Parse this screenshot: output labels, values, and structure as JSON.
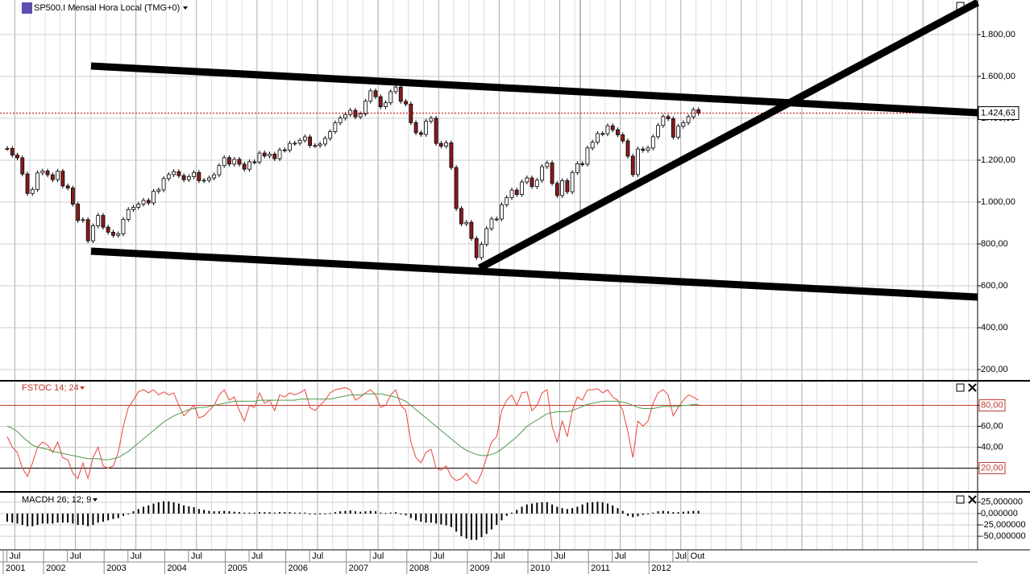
{
  "chart_data": [
    {
      "type": "candlestick",
      "title": "SP500.I Mensal Hora Local (TMG+0)",
      "values": [
        1256,
        1224,
        1211,
        1134,
        1041,
        1060,
        1139,
        1148,
        1130,
        1107,
        1147,
        1077,
        1067,
        990,
        912,
        916,
        815,
        886,
        936,
        880,
        856,
        841,
        848,
        917,
        964,
        975,
        990,
        1008,
        996,
        1051,
        1058,
        1112,
        1131,
        1145,
        1126,
        1107,
        1121,
        1141,
        1102,
        1104,
        1115,
        1130,
        1174,
        1212,
        1181,
        1204,
        1181,
        1157,
        1192,
        1191,
        1234,
        1220,
        1229,
        1207,
        1249,
        1248,
        1280,
        1281,
        1295,
        1311,
        1270,
        1270,
        1277,
        1304,
        1336,
        1378,
        1401,
        1418,
        1438,
        1407,
        1421,
        1482,
        1531,
        1503,
        1455,
        1474,
        1527,
        1549,
        1481,
        1468,
        1379,
        1331,
        1323,
        1386,
        1400,
        1280,
        1267,
        1283,
        1165,
        969,
        896,
        903,
        826,
        735,
        798,
        873,
        919,
        919,
        987,
        1021,
        1057,
        1036,
        1096,
        1115,
        1074,
        1104,
        1169,
        1187,
        1089,
        1031,
        1102,
        1049,
        1141,
        1183,
        1181,
        1258,
        1286,
        1327,
        1326,
        1364,
        1345,
        1321,
        1292,
        1219,
        1131,
        1253,
        1247,
        1258,
        1312,
        1366,
        1408,
        1398,
        1310,
        1362,
        1379,
        1407,
        1441,
        1424.63
      ],
      "up_color": "#ffffff",
      "down_color": "#8b1a1a",
      "ylim": [
        150,
        1965
      ],
      "yticks": [
        {
          "value": 200,
          "label": "200,00"
        },
        {
          "value": 400,
          "label": "400,00"
        },
        {
          "value": 600,
          "label": "600,00"
        },
        {
          "value": 800,
          "label": "800,00"
        },
        {
          "value": 1000,
          "label": "1.000,00"
        },
        {
          "value": 1200,
          "label": "1.200,00"
        },
        {
          "value": 1400,
          "label": "1.400,00"
        },
        {
          "value": 1600,
          "label": "1.600,00"
        },
        {
          "value": 1800,
          "label": "1.800,00"
        }
      ],
      "current_price": {
        "value": 1424.63,
        "label": "1.424,63"
      },
      "grid": true
    },
    {
      "type": "line",
      "title": "FSTOC 14; 24",
      "series": [
        {
          "color": "#e8463c",
          "values": [
            50,
            40,
            35,
            20,
            12,
            25,
            40,
            45,
            42,
            35,
            45,
            30,
            28,
            15,
            10,
            25,
            10,
            30,
            40,
            22,
            20,
            22,
            35,
            60,
            78,
            85,
            93,
            95,
            92,
            95,
            90,
            93,
            90,
            92,
            80,
            70,
            75,
            80,
            68,
            70,
            75,
            80,
            90,
            95,
            85,
            88,
            75,
            65,
            80,
            78,
            92,
            82,
            85,
            75,
            90,
            88,
            92,
            90,
            92,
            95,
            78,
            75,
            80,
            85,
            92,
            95,
            96,
            97,
            95,
            85,
            88,
            92,
            95,
            90,
            78,
            80,
            90,
            95,
            80,
            75,
            45,
            30,
            25,
            35,
            38,
            20,
            18,
            22,
            12,
            8,
            10,
            15,
            8,
            5,
            15,
            30,
            45,
            50,
            75,
            85,
            90,
            80,
            92,
            93,
            75,
            80,
            92,
            95,
            60,
            45,
            65,
            50,
            75,
            88,
            85,
            95,
            95,
            96,
            92,
            95,
            88,
            85,
            75,
            55,
            30,
            65,
            60,
            65,
            82,
            92,
            95,
            90,
            70,
            78,
            85,
            90,
            88,
            85
          ]
        },
        {
          "color": "#4f9a4f",
          "values": [
            60,
            58,
            55,
            50,
            46,
            42,
            40,
            39,
            38,
            36,
            35,
            34,
            33,
            32,
            31,
            30,
            29,
            29,
            29,
            28,
            28,
            29,
            30,
            33,
            36,
            40,
            44,
            48,
            52,
            56,
            60,
            64,
            67,
            70,
            72,
            74,
            76,
            77,
            78,
            78,
            79,
            80,
            81,
            82,
            83,
            84,
            84,
            84,
            84,
            84,
            85,
            85,
            85,
            85,
            85,
            85,
            85,
            85,
            86,
            86,
            86,
            86,
            86,
            86,
            86,
            87,
            88,
            89,
            90,
            90,
            90,
            91,
            91,
            91,
            91,
            90,
            89,
            88,
            86,
            84,
            80,
            76,
            72,
            68,
            64,
            60,
            56,
            52,
            48,
            44,
            40,
            37,
            35,
            33,
            32,
            32,
            33,
            35,
            38,
            42,
            46,
            50,
            55,
            60,
            63,
            66,
            69,
            72,
            73,
            74,
            74,
            74,
            75,
            77,
            79,
            81,
            82,
            83,
            84,
            84,
            84,
            84,
            83,
            82,
            80,
            78,
            77,
            77,
            77,
            78,
            79,
            79,
            79,
            79,
            80,
            80,
            81,
            81
          ]
        }
      ],
      "ylim": [
        -2,
        102
      ],
      "yticks": [
        {
          "value": 20,
          "label": "20,00"
        },
        {
          "value": 40,
          "label": "40,00"
        },
        {
          "value": 60,
          "label": "60,00"
        },
        {
          "value": 80,
          "label": "80,00"
        }
      ]
    },
    {
      "type": "bar",
      "title": "MACDH 26; 12; 9",
      "color": "#000000",
      "values": [
        -18,
        -20,
        -22,
        -25,
        -28,
        -28,
        -25,
        -22,
        -22,
        -22,
        -20,
        -20,
        -20,
        -22,
        -25,
        -25,
        -28,
        -25,
        -20,
        -18,
        -15,
        -12,
        -10,
        -5,
        0,
        5,
        10,
        15,
        18,
        22,
        25,
        27,
        27,
        25,
        22,
        18,
        16,
        14,
        10,
        8,
        6,
        5,
        5,
        6,
        5,
        4,
        3,
        2,
        2,
        2,
        3,
        3,
        3,
        2,
        3,
        3,
        3,
        2,
        2,
        2,
        0,
        -2,
        -2,
        -1,
        1,
        3,
        5,
        6,
        7,
        5,
        4,
        5,
        6,
        5,
        2,
        1,
        2,
        3,
        -1,
        -4,
        -10,
        -15,
        -18,
        -20,
        -20,
        -22,
        -24,
        -26,
        -30,
        -40,
        -50,
        -55,
        -58,
        -58,
        -52,
        -45,
        -35,
        -25,
        -15,
        -5,
        2,
        8,
        15,
        20,
        22,
        24,
        25,
        25,
        20,
        15,
        12,
        10,
        12,
        15,
        20,
        24,
        25,
        26,
        25,
        22,
        18,
        12,
        6,
        -5,
        -8,
        -6,
        -3,
        0,
        2,
        5,
        6,
        5,
        3,
        3,
        4,
        5,
        6,
        6
      ],
      "ylim": [
        -80,
        46
      ],
      "yticks": [
        {
          "value": 25,
          "label": "25,000000"
        },
        {
          "value": 0,
          "label": "0,000000"
        },
        {
          "value": -25,
          "label": "-25,000000"
        },
        {
          "value": -50,
          "label": "-50,000000"
        }
      ],
      "categories": [
        null,
        null,
        "Jul",
        null,
        null,
        null,
        null,
        null,
        null,
        null,
        null,
        null,
        null,
        null,
        "Jul",
        null,
        null,
        null,
        null,
        null,
        null,
        null,
        null,
        null,
        null,
        null,
        "Jul",
        null,
        null,
        null,
        null,
        null,
        null,
        null,
        null,
        null,
        null,
        null,
        "Jul",
        null,
        null,
        null,
        null,
        null,
        null,
        null,
        null,
        null,
        null,
        null,
        "Jul",
        null,
        null,
        null,
        null,
        null,
        null,
        null,
        null,
        null,
        null,
        null,
        "Jul",
        null,
        null,
        null,
        null,
        null,
        null,
        null,
        null,
        null,
        null,
        null,
        "Jul",
        null,
        null,
        null,
        null,
        null,
        null,
        null,
        null,
        null,
        null,
        null,
        "Jul",
        null,
        null,
        null,
        null,
        null,
        null,
        null,
        null,
        null,
        null,
        null,
        "Jul",
        null,
        null,
        null,
        null,
        null,
        null,
        null,
        null,
        null,
        null,
        null,
        "Jul",
        null,
        null,
        null,
        null,
        null,
        null,
        null,
        null,
        null,
        null,
        null,
        "Jul",
        null,
        null,
        null,
        null,
        null,
        null,
        null,
        null,
        null,
        null,
        null,
        "Jul",
        null,
        null,
        "Out"
      ],
      "year_labels": [
        "2001",
        null,
        null,
        null,
        null,
        null,
        null,
        null,
        "2002",
        null,
        null,
        null,
        null,
        null,
        null,
        null,
        null,
        null,
        null,
        null,
        "2003",
        null,
        null,
        null,
        null,
        null,
        null,
        null,
        null,
        null,
        null,
        null,
        "2004",
        null,
        null,
        null,
        null,
        null,
        null,
        null,
        null,
        null,
        null,
        null,
        "2005",
        null,
        null,
        null,
        null,
        null,
        null,
        null,
        null,
        null,
        null,
        null,
        "2006",
        null,
        null,
        null,
        null,
        null,
        null,
        null,
        null,
        null,
        null,
        null,
        "2007",
        null,
        null,
        null,
        null,
        null,
        null,
        null,
        null,
        null,
        null,
        null,
        "2008",
        null,
        null,
        null,
        null,
        null,
        null,
        null,
        null,
        null,
        null,
        null,
        "2009",
        null,
        null,
        null,
        null,
        null,
        null,
        null,
        null,
        null,
        null,
        null,
        "2010",
        null,
        null,
        null,
        null,
        null,
        null,
        null,
        null,
        null,
        null,
        null,
        "2011",
        null,
        null,
        null,
        null,
        null,
        null,
        null,
        null,
        null,
        null,
        null,
        "2012",
        null,
        null,
        null,
        null,
        null,
        null,
        null,
        null,
        null
      ]
    }
  ]
}
